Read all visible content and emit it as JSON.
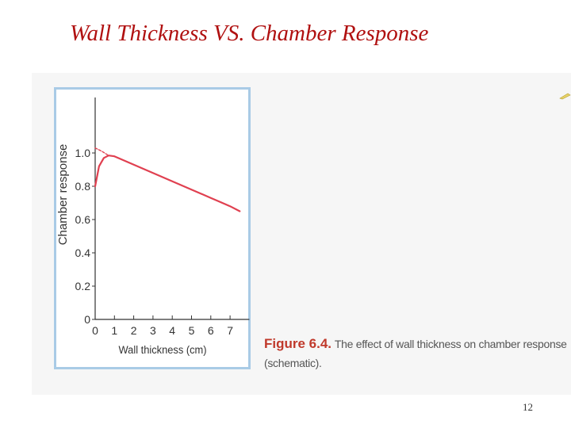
{
  "slide": {
    "title": "Wall Thickness VS. Chamber Response",
    "page_number": "12"
  },
  "caption": {
    "figure_label": "Figure 6.4.",
    "text_line1": "The effect of wall thickness on chamber response",
    "text_line2": "(schematic)."
  },
  "colors": {
    "title": "#b01010",
    "curve": "#e04050",
    "axis": "#333333",
    "panel_border": "#a9cbe6",
    "figure_label": "#c0392b"
  },
  "chart_data": {
    "type": "line",
    "title": "",
    "xlabel": "Wall thickness (cm)",
    "ylabel": "Chamber response",
    "xlim": [
      0,
      8
    ],
    "ylim": [
      0,
      1.2
    ],
    "x_ticks": [
      "0",
      "1",
      "2",
      "3",
      "4",
      "5",
      "6",
      "7"
    ],
    "y_ticks": [
      "0",
      "0.2",
      "0.4",
      "0.6",
      "0.8",
      "1.0"
    ],
    "grid": false,
    "series": [
      {
        "style": "solid",
        "x": [
          0,
          0.2,
          0.45,
          0.7,
          1,
          2,
          3,
          4,
          5,
          6,
          7,
          7.5
        ],
        "y": [
          0.8,
          0.92,
          0.97,
          0.985,
          0.98,
          0.93,
          0.88,
          0.83,
          0.78,
          0.73,
          0.68,
          0.65
        ]
      },
      {
        "style": "dashed",
        "x": [
          0,
          0.35,
          0.7
        ],
        "y": [
          1.03,
          1.01,
          0.985
        ]
      }
    ]
  }
}
